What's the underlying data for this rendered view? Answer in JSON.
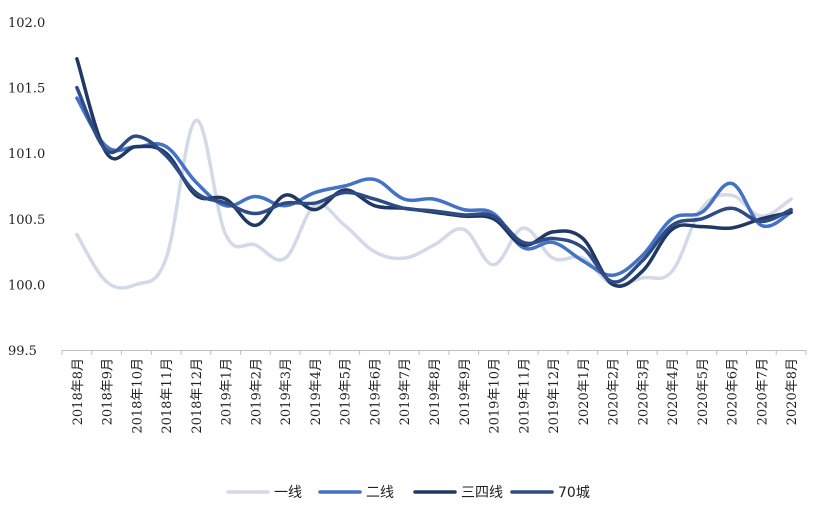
{
  "chart_data": {
    "type": "line",
    "title": "",
    "xlabel": "",
    "ylabel": "",
    "ylim": [
      99.5,
      102.0
    ],
    "yticks": [
      "99.5",
      "100.0",
      "100.5",
      "101.0",
      "101.5",
      "102.0"
    ],
    "grid": false,
    "legend_position": "bottom",
    "categories": [
      "2018年8月",
      "2018年9月",
      "2018年10月",
      "2018年11月",
      "2018年12月",
      "2019年1月",
      "2019年2月",
      "2019年3月",
      "2019年4月",
      "2019年5月",
      "2019年6月",
      "2019年7月",
      "2019年8月",
      "2019年9月",
      "2019年10月",
      "2019年11月",
      "2019年12月",
      "2020年1月",
      "2020年2月",
      "2020年3月",
      "2020年4月",
      "2020年5月",
      "2020年6月",
      "2020年7月",
      "2020年8月"
    ],
    "series": [
      {
        "name": "一线",
        "color": "#d3d9e8",
        "values": [
          100.38,
          100.02,
          100.0,
          100.2,
          101.25,
          100.38,
          100.3,
          100.2,
          100.6,
          100.45,
          100.25,
          100.2,
          100.3,
          100.42,
          100.15,
          100.43,
          100.2,
          100.2,
          100.0,
          100.05,
          100.1,
          100.58,
          100.68,
          100.52,
          100.65
        ]
      },
      {
        "name": "二线",
        "color": "#4472c4",
        "values": [
          101.42,
          101.05,
          101.05,
          101.05,
          100.78,
          100.6,
          100.67,
          100.6,
          100.7,
          100.75,
          100.8,
          100.65,
          100.65,
          100.57,
          100.54,
          100.28,
          100.32,
          100.18,
          100.07,
          100.22,
          100.5,
          100.55,
          100.77,
          100.45,
          100.55
        ]
      },
      {
        "name": "三四线",
        "color": "#203864",
        "values": [
          101.72,
          101.0,
          101.05,
          101.0,
          100.68,
          100.65,
          100.45,
          100.68,
          100.57,
          100.72,
          100.6,
          100.58,
          100.55,
          100.52,
          100.5,
          100.3,
          100.4,
          100.35,
          100.0,
          100.1,
          100.42,
          100.44,
          100.43,
          100.5,
          100.55
        ]
      },
      {
        "name": "70城",
        "color": "#2e4b84",
        "values": [
          101.5,
          101.02,
          101.13,
          100.98,
          100.7,
          100.62,
          100.54,
          100.62,
          100.62,
          100.7,
          100.65,
          100.58,
          100.56,
          100.53,
          100.52,
          100.32,
          100.35,
          100.28,
          100.02,
          100.18,
          100.45,
          100.5,
          100.58,
          100.48,
          100.57
        ]
      }
    ]
  }
}
